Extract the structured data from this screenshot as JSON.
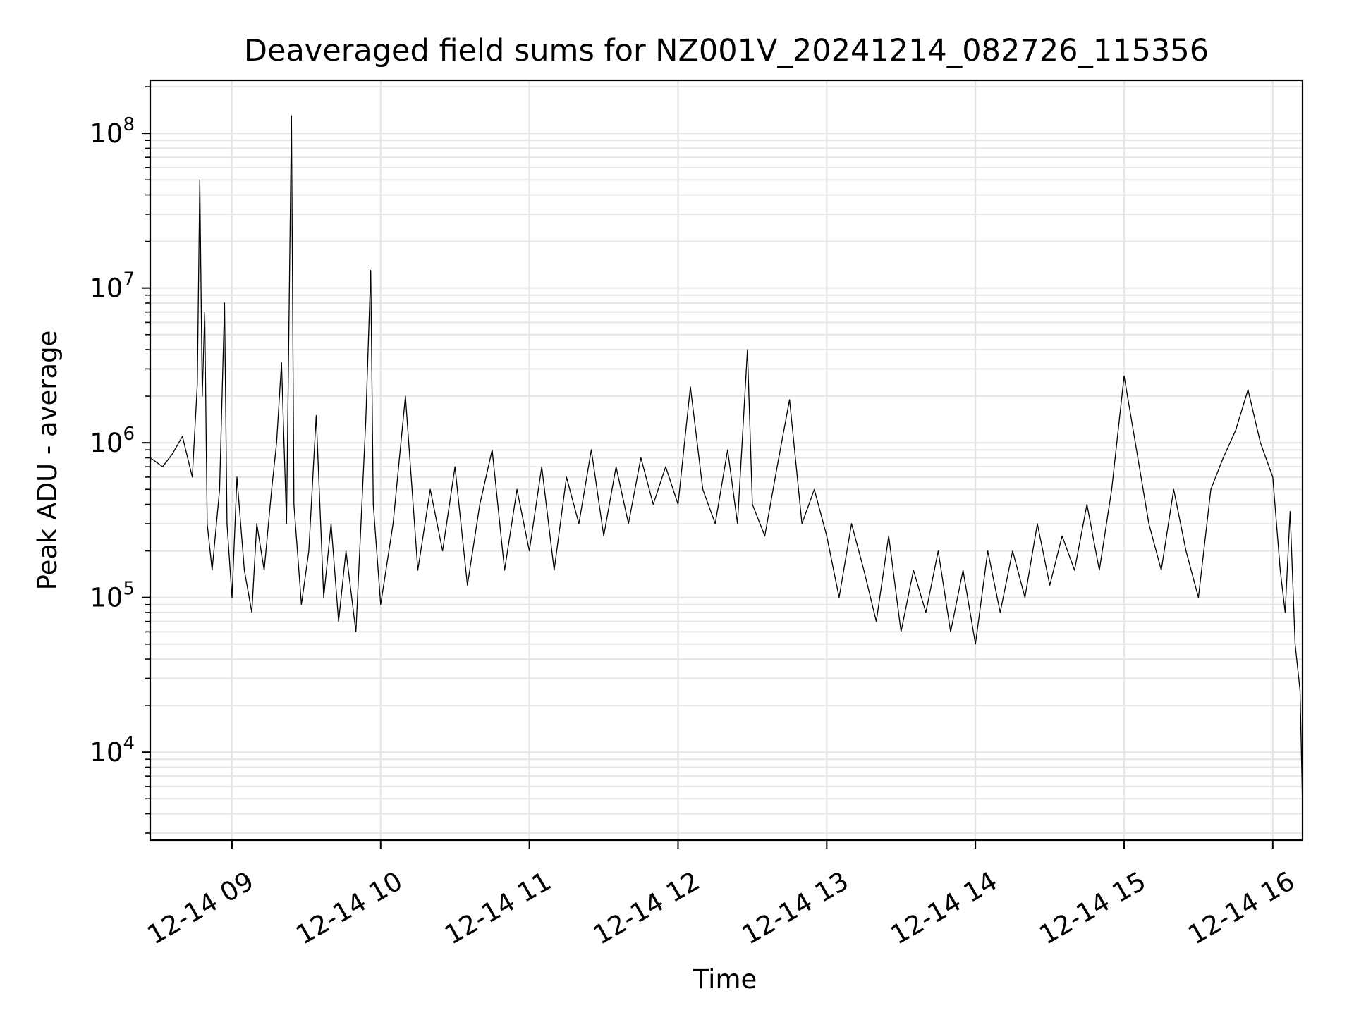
{
  "chart_data": {
    "type": "line",
    "title": "Deaveraged field sums for NZ001V_20241214_082726_115356",
    "xlabel": "Time",
    "ylabel": "Peak ADU - average",
    "x_range": [
      "2024-12-14 08:27",
      "2024-12-14 16:12"
    ],
    "yscale": "log",
    "ylim": [
      2700,
      220000000
    ],
    "grid": true,
    "line_color": "#000000",
    "x_ticks": [
      {
        "time": "2024-12-14 09:00",
        "label": "12-14 09"
      },
      {
        "time": "2024-12-14 10:00",
        "label": "12-14 10"
      },
      {
        "time": "2024-12-14 11:00",
        "label": "12-14 11"
      },
      {
        "time": "2024-12-14 12:00",
        "label": "12-14 12"
      },
      {
        "time": "2024-12-14 13:00",
        "label": "12-14 13"
      },
      {
        "time": "2024-12-14 14:00",
        "label": "12-14 14"
      },
      {
        "time": "2024-12-14 15:00",
        "label": "12-14 15"
      },
      {
        "time": "2024-12-14 16:00",
        "label": "12-14 16"
      }
    ],
    "y_ticks": [
      {
        "value": 10000,
        "base": "10",
        "exp": "4"
      },
      {
        "value": 100000,
        "base": "10",
        "exp": "5"
      },
      {
        "value": 1000000,
        "base": "10",
        "exp": "6"
      },
      {
        "value": 10000000,
        "base": "10",
        "exp": "7"
      },
      {
        "value": 100000000,
        "base": "10",
        "exp": "8"
      }
    ],
    "series": [
      {
        "points": [
          [
            "2024-12-14 08:27",
            800000
          ],
          [
            "2024-12-14 08:32",
            700000
          ],
          [
            "2024-12-14 08:36",
            850000
          ],
          [
            "2024-12-14 08:40",
            1100000
          ],
          [
            "2024-12-14 08:44",
            600000
          ],
          [
            "2024-12-14 08:46",
            2400000
          ],
          [
            "2024-12-14 08:47",
            50000000
          ],
          [
            "2024-12-14 08:48",
            2000000
          ],
          [
            "2024-12-14 08:49",
            7000000
          ],
          [
            "2024-12-14 08:50",
            300000
          ],
          [
            "2024-12-14 08:52",
            150000
          ],
          [
            "2024-12-14 08:55",
            500000
          ],
          [
            "2024-12-14 08:57",
            8000000
          ],
          [
            "2024-12-14 08:58",
            300000
          ],
          [
            "2024-12-14 09:00",
            100000
          ],
          [
            "2024-12-14 09:02",
            600000
          ],
          [
            "2024-12-14 09:05",
            150000
          ],
          [
            "2024-12-14 09:08",
            80000
          ],
          [
            "2024-12-14 09:10",
            300000
          ],
          [
            "2024-12-14 09:13",
            150000
          ],
          [
            "2024-12-14 09:16",
            500000
          ],
          [
            "2024-12-14 09:18",
            1000000
          ],
          [
            "2024-12-14 09:20",
            3300000
          ],
          [
            "2024-12-14 09:22",
            300000
          ],
          [
            "2024-12-14 09:24",
            130000000
          ],
          [
            "2024-12-14 09:25",
            400000
          ],
          [
            "2024-12-14 09:28",
            90000
          ],
          [
            "2024-12-14 09:31",
            200000
          ],
          [
            "2024-12-14 09:34",
            1500000
          ],
          [
            "2024-12-14 09:37",
            100000
          ],
          [
            "2024-12-14 09:40",
            300000
          ],
          [
            "2024-12-14 09:43",
            70000
          ],
          [
            "2024-12-14 09:46",
            200000
          ],
          [
            "2024-12-14 09:50",
            60000
          ],
          [
            "2024-12-14 09:54",
            1400000
          ],
          [
            "2024-12-14 09:56",
            13000000
          ],
          [
            "2024-12-14 09:57",
            400000
          ],
          [
            "2024-12-14 10:00",
            90000
          ],
          [
            "2024-12-14 10:05",
            300000
          ],
          [
            "2024-12-14 10:10",
            2000000
          ],
          [
            "2024-12-14 10:15",
            150000
          ],
          [
            "2024-12-14 10:20",
            500000
          ],
          [
            "2024-12-14 10:25",
            200000
          ],
          [
            "2024-12-14 10:30",
            700000
          ],
          [
            "2024-12-14 10:35",
            120000
          ],
          [
            "2024-12-14 10:40",
            400000
          ],
          [
            "2024-12-14 10:45",
            900000
          ],
          [
            "2024-12-14 10:50",
            150000
          ],
          [
            "2024-12-14 10:55",
            500000
          ],
          [
            "2024-12-14 11:00",
            200000
          ],
          [
            "2024-12-14 11:05",
            700000
          ],
          [
            "2024-12-14 11:10",
            150000
          ],
          [
            "2024-12-14 11:15",
            600000
          ],
          [
            "2024-12-14 11:20",
            300000
          ],
          [
            "2024-12-14 11:25",
            900000
          ],
          [
            "2024-12-14 11:30",
            250000
          ],
          [
            "2024-12-14 11:35",
            700000
          ],
          [
            "2024-12-14 11:40",
            300000
          ],
          [
            "2024-12-14 11:45",
            800000
          ],
          [
            "2024-12-14 11:50",
            400000
          ],
          [
            "2024-12-14 11:55",
            700000
          ],
          [
            "2024-12-14 12:00",
            400000
          ],
          [
            "2024-12-14 12:05",
            2300000
          ],
          [
            "2024-12-14 12:10",
            500000
          ],
          [
            "2024-12-14 12:15",
            300000
          ],
          [
            "2024-12-14 12:20",
            900000
          ],
          [
            "2024-12-14 12:24",
            300000
          ],
          [
            "2024-12-14 12:28",
            4000000
          ],
          [
            "2024-12-14 12:30",
            400000
          ],
          [
            "2024-12-14 12:35",
            250000
          ],
          [
            "2024-12-14 12:40",
            700000
          ],
          [
            "2024-12-14 12:45",
            1900000
          ],
          [
            "2024-12-14 12:50",
            300000
          ],
          [
            "2024-12-14 12:55",
            500000
          ],
          [
            "2024-12-14 13:00",
            250000
          ],
          [
            "2024-12-14 13:05",
            100000
          ],
          [
            "2024-12-14 13:10",
            300000
          ],
          [
            "2024-12-14 13:15",
            150000
          ],
          [
            "2024-12-14 13:20",
            70000
          ],
          [
            "2024-12-14 13:25",
            250000
          ],
          [
            "2024-12-14 13:30",
            60000
          ],
          [
            "2024-12-14 13:35",
            150000
          ],
          [
            "2024-12-14 13:40",
            80000
          ],
          [
            "2024-12-14 13:45",
            200000
          ],
          [
            "2024-12-14 13:50",
            60000
          ],
          [
            "2024-12-14 13:55",
            150000
          ],
          [
            "2024-12-14 14:00",
            50000
          ],
          [
            "2024-12-14 14:05",
            200000
          ],
          [
            "2024-12-14 14:10",
            80000
          ],
          [
            "2024-12-14 14:15",
            200000
          ],
          [
            "2024-12-14 14:20",
            100000
          ],
          [
            "2024-12-14 14:25",
            300000
          ],
          [
            "2024-12-14 14:30",
            120000
          ],
          [
            "2024-12-14 14:35",
            250000
          ],
          [
            "2024-12-14 14:40",
            150000
          ],
          [
            "2024-12-14 14:45",
            400000
          ],
          [
            "2024-12-14 14:50",
            150000
          ],
          [
            "2024-12-14 14:55",
            500000
          ],
          [
            "2024-12-14 15:00",
            2700000
          ],
          [
            "2024-12-14 15:05",
            900000
          ],
          [
            "2024-12-14 15:10",
            300000
          ],
          [
            "2024-12-14 15:15",
            150000
          ],
          [
            "2024-12-14 15:20",
            500000
          ],
          [
            "2024-12-14 15:25",
            200000
          ],
          [
            "2024-12-14 15:30",
            100000
          ],
          [
            "2024-12-14 15:35",
            500000
          ],
          [
            "2024-12-14 15:40",
            800000
          ],
          [
            "2024-12-14 15:45",
            1200000
          ],
          [
            "2024-12-14 15:50",
            2200000
          ],
          [
            "2024-12-14 15:55",
            1000000
          ],
          [
            "2024-12-14 16:00",
            600000
          ],
          [
            "2024-12-14 16:03",
            150000
          ],
          [
            "2024-12-14 16:05",
            80000
          ],
          [
            "2024-12-14 16:07",
            360000
          ],
          [
            "2024-12-14 16:09",
            50000
          ],
          [
            "2024-12-14 16:11",
            25000
          ],
          [
            "2024-12-14 16:12",
            4500
          ]
        ]
      }
    ]
  }
}
